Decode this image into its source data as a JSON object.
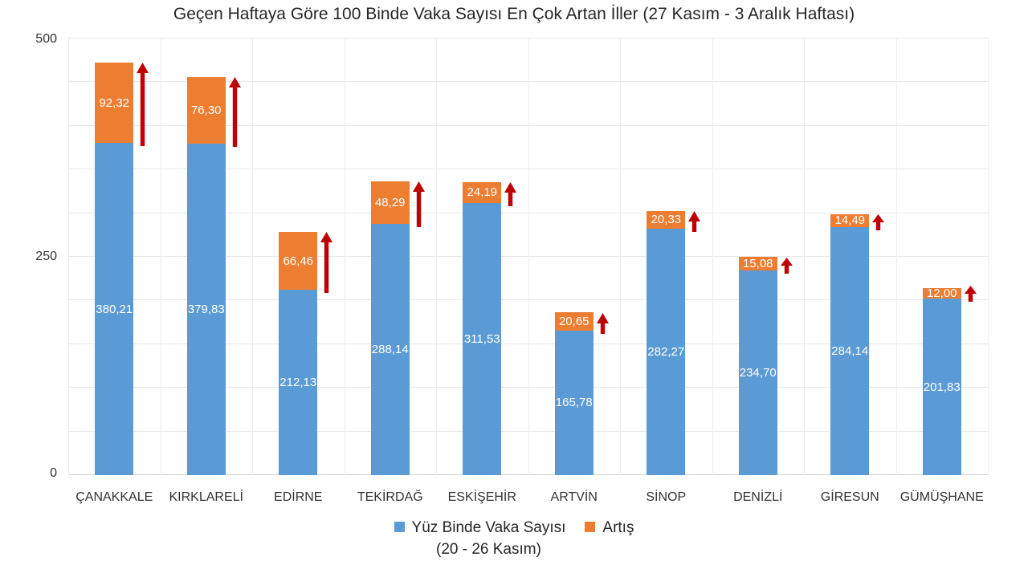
{
  "title": "Geçen Haftaya Göre 100 Binde Vaka Sayısı En Çok Artan İller (27 Kasım - 3 Aralık Haftası)",
  "colors": {
    "bar_blue": "#5B9BD5",
    "bar_orange": "#ED7D31",
    "arrow_red": "#C00000",
    "gridline": "#E7E7E7"
  },
  "y_axis": {
    "tick_labels": [
      "500",
      "250",
      "0"
    ],
    "min": 0,
    "max": 500,
    "gridline_step": 50
  },
  "legend": {
    "items": [
      {
        "label": "Yüz Binde Vaka Sayısı",
        "label_line2": "(20 - 26 Kasım)",
        "color": "#5B9BD5"
      },
      {
        "label": "Artış",
        "label_line2": "",
        "color": "#ED7D31"
      }
    ]
  },
  "chart_data": {
    "type": "bar",
    "stacked": true,
    "title": "Geçen Haftaya Göre 100 Binde Vaka Sayısı En Çok Artan İller (27 Kasım - 3 Aralık Haftası)",
    "categories": [
      "ÇANAKKALE",
      "KIRKLARELİ",
      "EDİRNE",
      "TEKİRDAĞ",
      "ESKİŞEHİR",
      "ARTVİN",
      "SİNOP",
      "DENİZLİ",
      "GİRESUN",
      "GÜMÜŞHANE"
    ],
    "series": [
      {
        "name": "Yüz Binde Vaka Sayısı (20 - 26 Kasım)",
        "color": "#5B9BD5",
        "values": [
          380.21,
          379.83,
          212.13,
          288.14,
          311.53,
          165.78,
          282.27,
          234.7,
          284.14,
          201.83
        ],
        "labels": [
          "380,21",
          "379,83",
          "212,13",
          "288,14",
          "311,53",
          "165,78",
          "282,27",
          "234,70",
          "284,14",
          "201,83"
        ]
      },
      {
        "name": "Artış",
        "color": "#ED7D31",
        "values": [
          92.32,
          76.3,
          66.46,
          48.29,
          24.19,
          20.65,
          20.33,
          15.08,
          14.49,
          12.0
        ],
        "labels": [
          "92,32",
          "76,30",
          "66,46",
          "48,29",
          "24,19",
          "20,65",
          "20,33",
          "15,08",
          "14,49",
          "12,00"
        ]
      }
    ],
    "annotations": "dark-red upward arrow beside each Artış (increase) segment",
    "ylim": [
      0,
      500
    ],
    "grid": true,
    "legend_position": "bottom"
  }
}
